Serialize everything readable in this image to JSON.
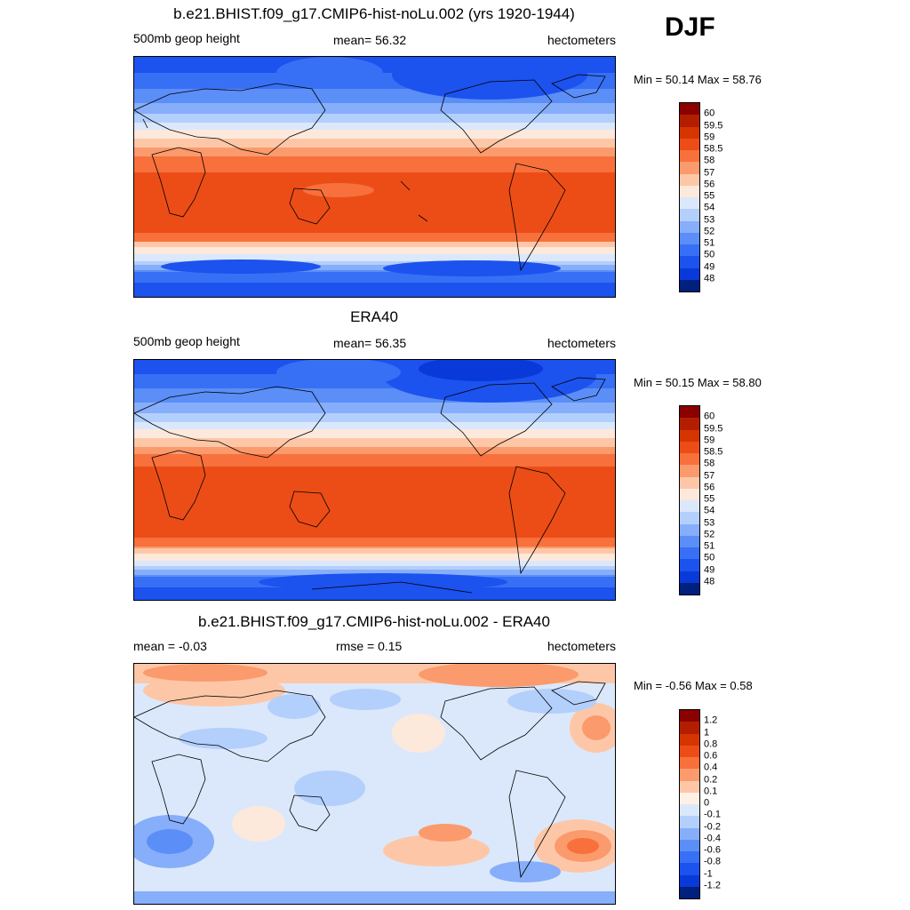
{
  "season": "DJF",
  "panels": [
    {
      "title": "b.e21.BHIST.f09_g17.CMIP6-hist-noLu.002 (yrs 1920-1944)",
      "left": "500mb geop height",
      "center": "mean=  56.32",
      "right": "hectometers",
      "minmax": "Min =  50.14 Max =  58.76",
      "type": "abs"
    },
    {
      "title": "ERA40",
      "left": "500mb geop height",
      "center": "mean=  56.35",
      "right": "hectometers",
      "minmax": "Min =  50.15 Max =  58.80",
      "type": "abs"
    },
    {
      "title": "b.e21.BHIST.f09_g17.CMIP6-hist-noLu.002 - ERA40",
      "left": "mean =  -0.03",
      "center": "rmse =   0.15",
      "right": "hectometers",
      "minmax": "Min =  -0.56 Max =   0.58",
      "type": "diff"
    }
  ],
  "colorbars": {
    "abs": {
      "colors": [
        "#8b0000",
        "#b41e00",
        "#d63500",
        "#ec4d17",
        "#f8703c",
        "#fb9a6c",
        "#fdc7a7",
        "#fde8dc",
        "#dbe8fb",
        "#b3cffc",
        "#86aefa",
        "#5b8ef7",
        "#3770f5",
        "#1c52ee",
        "#0a39d9",
        "#00207e"
      ],
      "labels": [
        "60",
        "59.5",
        "59",
        "58.5",
        "58",
        "57",
        "56",
        "55",
        "54",
        "53",
        "52",
        "51",
        "50",
        "49",
        "48"
      ]
    },
    "diff": {
      "colors": [
        "#8b0000",
        "#b41e00",
        "#d63500",
        "#ec4d17",
        "#f8703c",
        "#fb9a6c",
        "#fdc7a7",
        "#fff0e6",
        "#dbe8fb",
        "#b3cffc",
        "#86aefa",
        "#5b8ef7",
        "#3770f5",
        "#1c52ee",
        "#0a39d9",
        "#00207e"
      ],
      "labels": [
        "1.2",
        "1",
        "0.8",
        "0.6",
        "0.4",
        "0.2",
        "0.1",
        "0",
        "-0.1",
        "-0.2",
        "-0.4",
        "-0.6",
        "-0.8",
        "-1",
        "-1.2"
      ]
    }
  }
}
